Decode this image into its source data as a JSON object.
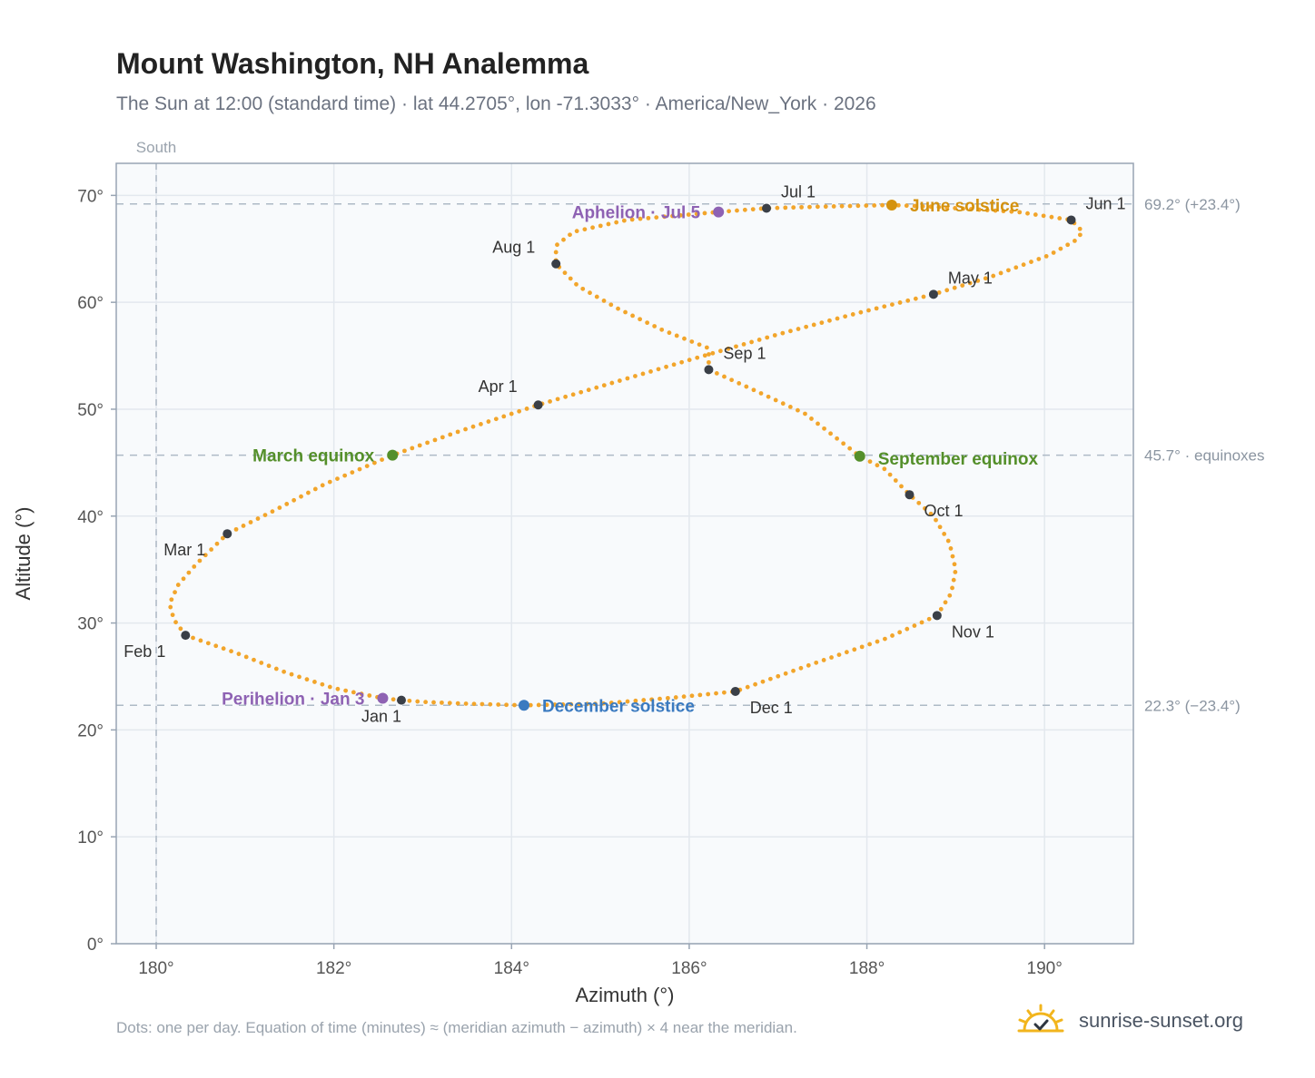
{
  "page": {
    "title": "Mount Washington, NH Analemma",
    "subtitle": "The Sun at 12:00 (standard time) · lat 44.2705°, lon -71.3033° · America/New_York · 2026",
    "footnote": "Dots: one per day. Equation of time (minutes) ≈ (meridian azimuth − azimuth) × 4 near the meridian.",
    "brand": "sunrise-sunset.org",
    "south_label": "South"
  },
  "colors": {
    "curve": "#f2a52b",
    "month_dot": "#3a3f47",
    "solstice_june": "#d4920f",
    "solstice_dec": "#3a7ac0",
    "equinox": "#548f2a",
    "apsis": "#8e62b3",
    "plot_bg": "#f8fafc",
    "grid": "#e3e8ee",
    "ref_line": "#aebac6",
    "logo_sun": "#f2b51d"
  },
  "chart_data": {
    "type": "scatter",
    "xlabel": "Azimuth (°)",
    "ylabel": "Altitude (°)",
    "xlim": [
      179.55,
      191.0
    ],
    "ylim": [
      0,
      73
    ],
    "xticks": [
      180,
      182,
      184,
      186,
      188,
      190
    ],
    "xtick_labels": [
      "180°",
      "182°",
      "184°",
      "186°",
      "188°",
      "190°"
    ],
    "yticks": [
      0,
      10,
      20,
      30,
      40,
      50,
      60,
      70
    ],
    "ytick_labels": [
      "0°",
      "10°",
      "20°",
      "30°",
      "40°",
      "50°",
      "60°",
      "70°"
    ],
    "grid": true,
    "meridian_azimuth": 180,
    "analemma_loop": [
      [
        182.76,
        22.78
      ],
      [
        182.55,
        22.96
      ],
      [
        182.0,
        23.9
      ],
      [
        181.45,
        25.4
      ],
      [
        180.9,
        27.2
      ],
      [
        180.33,
        28.85
      ],
      [
        180.2,
        30.3
      ],
      [
        180.15,
        31.8
      ],
      [
        180.25,
        33.6
      ],
      [
        180.45,
        35.5
      ],
      [
        180.8,
        38.35
      ],
      [
        181.3,
        40.4
      ],
      [
        181.9,
        43.0
      ],
      [
        182.66,
        45.7
      ],
      [
        183.4,
        47.9
      ],
      [
        184.3,
        50.4
      ],
      [
        185.15,
        52.5
      ],
      [
        186.0,
        54.6
      ],
      [
        187.0,
        57.0
      ],
      [
        187.9,
        59.0
      ],
      [
        188.75,
        60.75
      ],
      [
        189.4,
        62.4
      ],
      [
        190.05,
        64.4
      ],
      [
        190.35,
        65.8
      ],
      [
        190.43,
        66.6
      ],
      [
        190.3,
        67.7
      ],
      [
        189.7,
        68.45
      ],
      [
        188.7,
        68.95
      ],
      [
        188.28,
        69.1
      ],
      [
        187.5,
        68.95
      ],
      [
        186.87,
        68.8
      ],
      [
        186.33,
        68.45
      ],
      [
        185.3,
        67.7
      ],
      [
        184.7,
        66.6
      ],
      [
        184.5,
        65.3
      ],
      [
        184.5,
        63.6
      ],
      [
        184.75,
        61.5
      ],
      [
        185.2,
        59.4
      ],
      [
        185.7,
        57.4
      ],
      [
        186.22,
        55.7
      ],
      [
        186.22,
        53.7
      ],
      [
        186.7,
        51.9
      ],
      [
        187.3,
        49.6
      ],
      [
        187.92,
        45.6
      ],
      [
        188.2,
        44.4
      ],
      [
        188.48,
        42.0
      ],
      [
        188.75,
        40.0
      ],
      [
        188.93,
        37.5
      ],
      [
        189.0,
        35.0
      ],
      [
        188.95,
        32.8
      ],
      [
        188.79,
        30.7
      ],
      [
        188.2,
        28.5
      ],
      [
        187.4,
        26.2
      ],
      [
        186.52,
        23.6
      ],
      [
        185.8,
        23.0
      ],
      [
        185.0,
        22.45
      ],
      [
        184.14,
        22.3
      ],
      [
        183.5,
        22.45
      ],
      [
        183.0,
        22.62
      ],
      [
        182.76,
        22.78
      ]
    ],
    "month_markers": [
      {
        "label": "Jan 1",
        "az": 182.76,
        "alt": 22.78
      },
      {
        "label": "Feb 1",
        "az": 180.33,
        "alt": 28.85
      },
      {
        "label": "Mar 1",
        "az": 180.8,
        "alt": 38.35
      },
      {
        "label": "Apr 1",
        "az": 184.3,
        "alt": 50.4
      },
      {
        "label": "May 1",
        "az": 188.75,
        "alt": 60.75
      },
      {
        "label": "Jun 1",
        "az": 190.3,
        "alt": 67.7
      },
      {
        "label": "Jul 1",
        "az": 186.87,
        "alt": 68.8
      },
      {
        "label": "Aug 1",
        "az": 184.5,
        "alt": 63.6
      },
      {
        "label": "Sep 1",
        "az": 186.22,
        "alt": 53.7
      },
      {
        "label": "Oct 1",
        "az": 188.48,
        "alt": 42.0
      },
      {
        "label": "Nov 1",
        "az": 188.79,
        "alt": 30.7
      },
      {
        "label": "Dec 1",
        "az": 186.52,
        "alt": 23.6
      }
    ],
    "events": [
      {
        "label": "June solstice",
        "az": 188.28,
        "alt": 69.1,
        "color": "#d4920f"
      },
      {
        "label": "December solstice",
        "az": 184.14,
        "alt": 22.3,
        "color": "#3a7ac0"
      },
      {
        "label": "March equinox",
        "az": 182.66,
        "alt": 45.7,
        "color": "#548f2a"
      },
      {
        "label": "September equinox",
        "az": 187.92,
        "alt": 45.6,
        "color": "#548f2a"
      },
      {
        "label": "Aphelion · Jul 5",
        "az": 186.33,
        "alt": 68.45,
        "color": "#8e62b3"
      },
      {
        "label": "Perihelion · Jan 3",
        "az": 182.55,
        "alt": 22.96,
        "color": "#8e62b3"
      }
    ],
    "reference_lines": [
      {
        "alt": 69.2,
        "label": "69.2° (+23.4°)"
      },
      {
        "alt": 45.7,
        "label": "45.7° · equinoxes"
      },
      {
        "alt": 22.3,
        "label": "22.3° (−23.4°)"
      }
    ]
  }
}
